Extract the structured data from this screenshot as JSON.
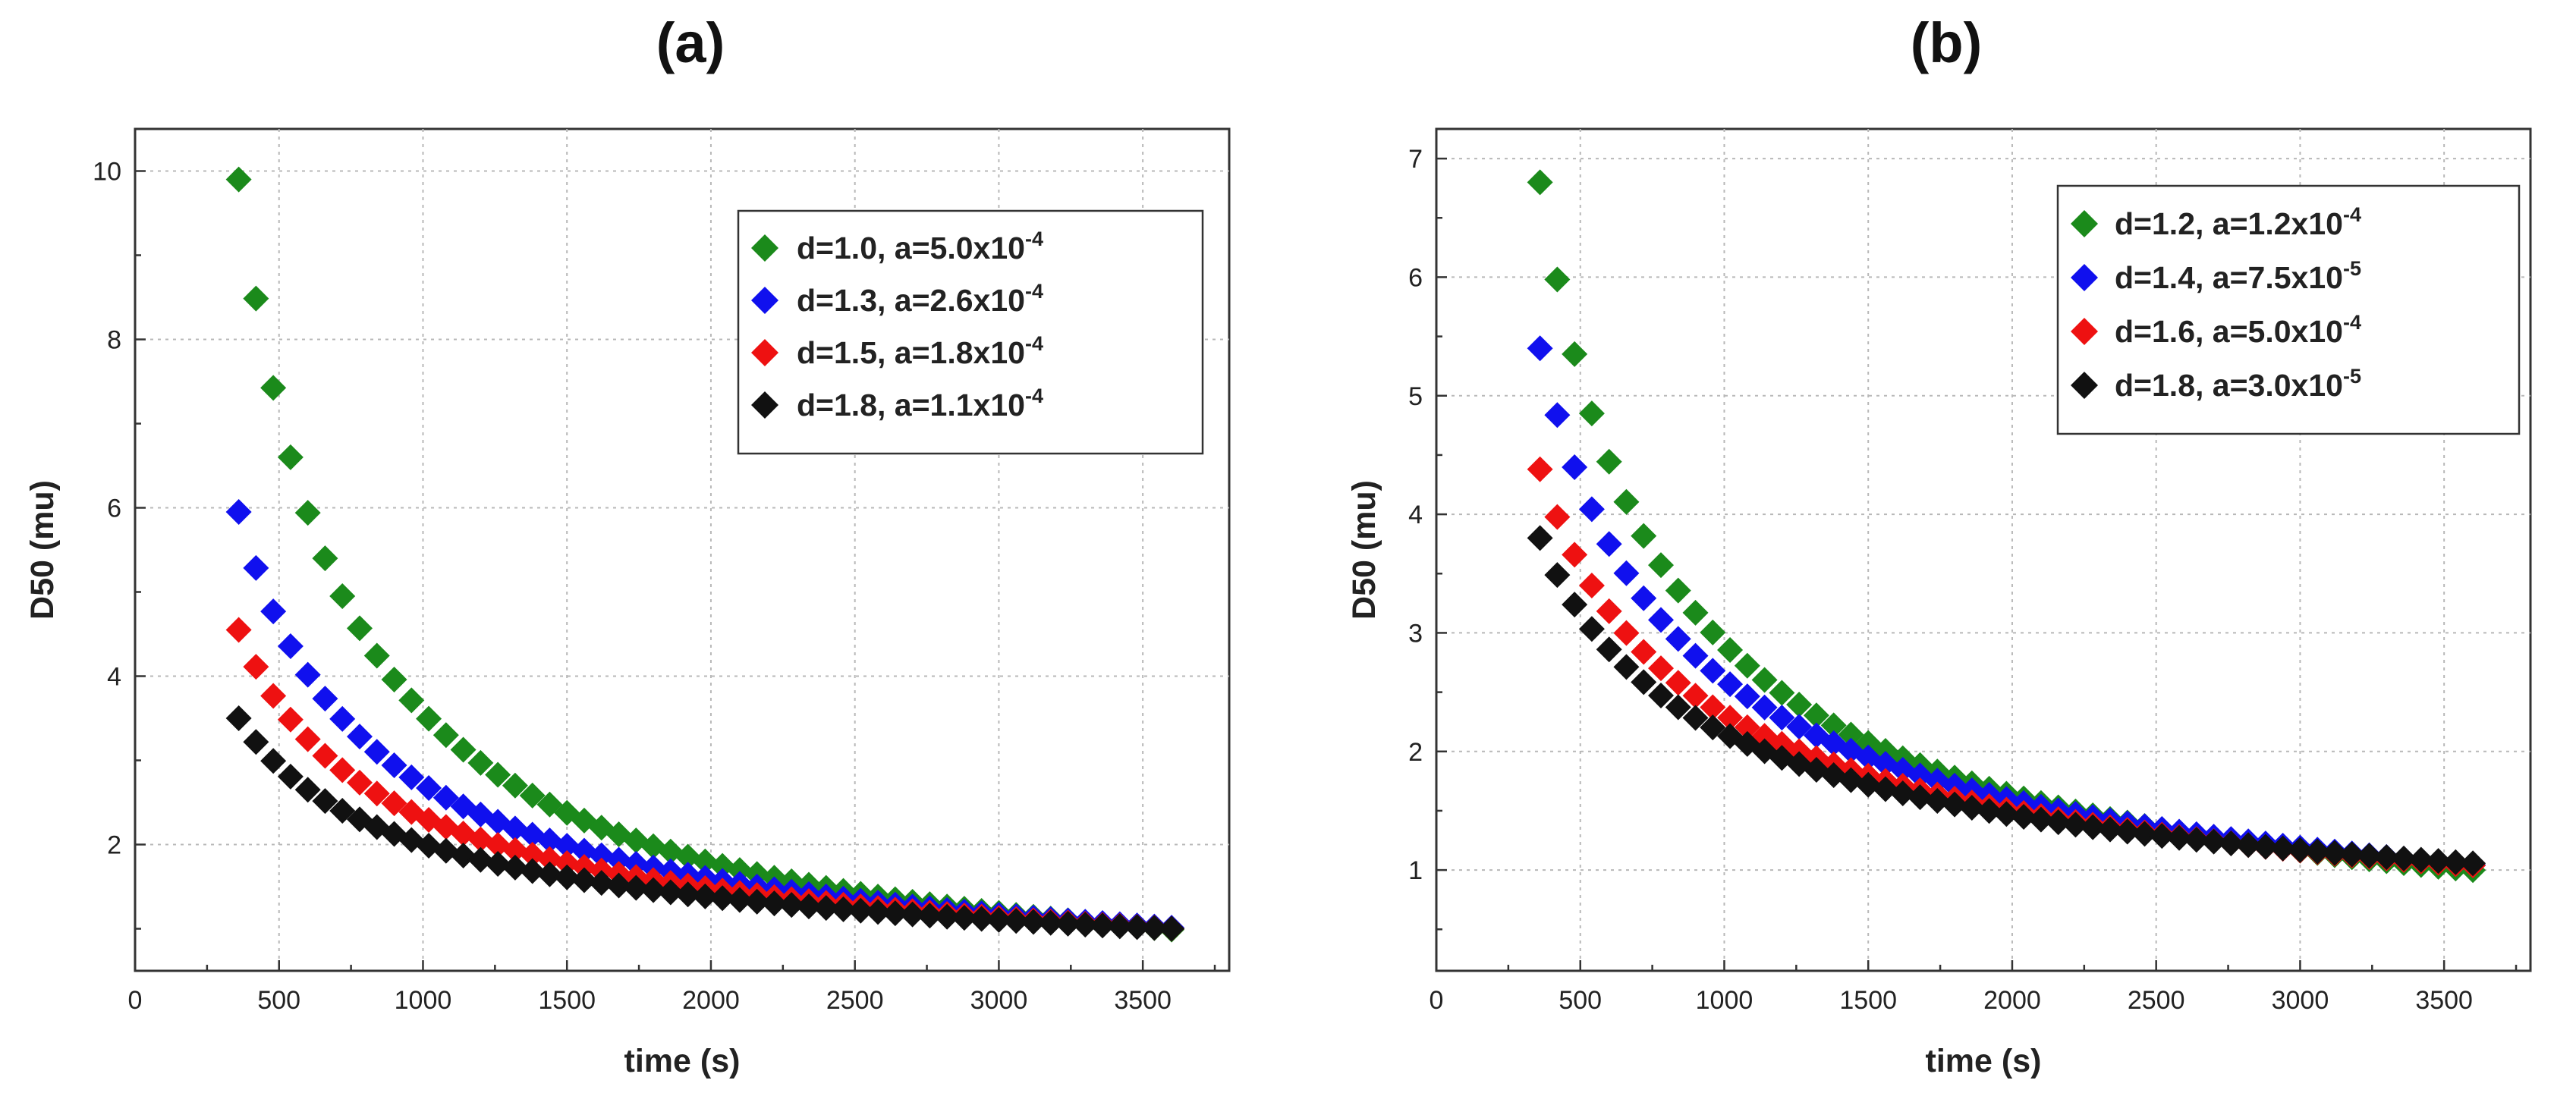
{
  "figure": {
    "panels": [
      "(a)",
      "(b)"
    ]
  },
  "chart_data": [
    {
      "panel_label": "(a)",
      "type": "scatter",
      "marker": "diamond",
      "title": "",
      "xlabel": "time (s)",
      "ylabel": "D50 (mu)",
      "xlim": [
        0,
        3800
      ],
      "ylim": [
        0.5,
        10.5
      ],
      "xticks": [
        0,
        500,
        1000,
        1500,
        2000,
        2500,
        3000,
        3500
      ],
      "yticks": [
        2,
        4,
        6,
        8,
        10
      ],
      "grid": true,
      "legend_position": "top-right",
      "x": {
        "start": 360,
        "stop": 3600,
        "step": 60
      },
      "series": [
        {
          "d": "1.0",
          "a_mantissa": "5.0",
          "a_exponent": "-4",
          "label": "d=1.0, a=5.0x10^-4",
          "color": "#1b8a1b",
          "power_law": {
            "coefficient": 9.9,
            "t0": 360,
            "exponent": 1.0
          },
          "values_at": {
            "360": 9.9,
            "500": 7.1,
            "1000": 3.6,
            "2000": 1.8,
            "3600": 1.0
          }
        },
        {
          "d": "1.3",
          "a_mantissa": "2.6",
          "a_exponent": "-4",
          "label": "d=1.3, a=2.6x10^-4",
          "color": "#1010ee",
          "power_law": {
            "coefficient": 5.95,
            "t0": 360,
            "exponent": 0.769
          },
          "values_at": {
            "360": 5.95,
            "500": 4.7,
            "1000": 2.9,
            "2000": 1.6,
            "3600": 1.0
          }
        },
        {
          "d": "1.5",
          "a_mantissa": "1.8",
          "a_exponent": "-4",
          "label": "d=1.5, a=1.8x10^-4",
          "color": "#ee1111",
          "power_law": {
            "coefficient": 4.55,
            "t0": 360,
            "exponent": 0.658
          },
          "values_at": {
            "360": 4.55,
            "500": 3.7,
            "1000": 2.3,
            "2000": 1.4,
            "3600": 1.0
          }
        },
        {
          "d": "1.8",
          "a_mantissa": "1.1",
          "a_exponent": "-4",
          "label": "d=1.8, a=1.1x10^-4",
          "color": "#111111",
          "power_law": {
            "coefficient": 3.5,
            "t0": 360,
            "exponent": 0.544
          },
          "values_at": {
            "360": 3.5,
            "500": 3.0,
            "1000": 2.0,
            "2000": 1.4,
            "3600": 1.0
          }
        }
      ]
    },
    {
      "panel_label": "(b)",
      "type": "scatter",
      "marker": "diamond",
      "title": "",
      "xlabel": "time (s)",
      "ylabel": "D50 (mu)",
      "xlim": [
        0,
        3800
      ],
      "ylim": [
        0.15,
        7.25
      ],
      "xticks": [
        0,
        500,
        1000,
        1500,
        2000,
        2500,
        3000,
        3500
      ],
      "yticks": [
        1,
        2,
        3,
        4,
        5,
        6,
        7
      ],
      "grid": true,
      "legend_position": "top-right",
      "x": {
        "start": 360,
        "stop": 3600,
        "step": 60
      },
      "series": [
        {
          "d": "1.2",
          "a_mantissa": "1.2",
          "a_exponent": "-4",
          "label": "d=1.2, a=1.2x10^-4",
          "color": "#1b8a1b",
          "power_law": {
            "coefficient": 6.8,
            "t0": 360,
            "exponent": 0.833
          },
          "values_at": {
            "360": 6.8,
            "500": 5.3,
            "1000": 2.9,
            "2000": 1.6,
            "3600": 1.0
          }
        },
        {
          "d": "1.4",
          "a_mantissa": "7.5",
          "a_exponent": "-5",
          "label": "d=1.4, a=7.5x10^-5",
          "color": "#1010ee",
          "power_law": {
            "coefficient": 5.4,
            "t0": 360,
            "exponent": 0.714
          },
          "values_at": {
            "360": 5.4,
            "500": 4.4,
            "1000": 2.6,
            "2000": 1.55,
            "3600": 1.05
          }
        },
        {
          "d": "1.6",
          "a_mantissa": "5.0",
          "a_exponent": "-4",
          "label": "d=1.6, a=5.0x10^-4",
          "color": "#ee1111",
          "power_law": {
            "coefficient": 4.38,
            "t0": 360,
            "exponent": 0.625
          },
          "values_at": {
            "360": 4.38,
            "500": 3.6,
            "1000": 2.3,
            "2000": 1.5,
            "3600": 1.05
          }
        },
        {
          "d": "1.8",
          "a_mantissa": "3.0",
          "a_exponent": "-5",
          "label": "d=1.8, a=3.0x10^-5",
          "color": "#111111",
          "power_law": {
            "coefficient": 3.8,
            "t0": 360,
            "exponent": 0.556
          },
          "values_at": {
            "360": 3.8,
            "500": 3.2,
            "1000": 2.1,
            "2000": 1.45,
            "3600": 1.05
          }
        }
      ]
    }
  ]
}
